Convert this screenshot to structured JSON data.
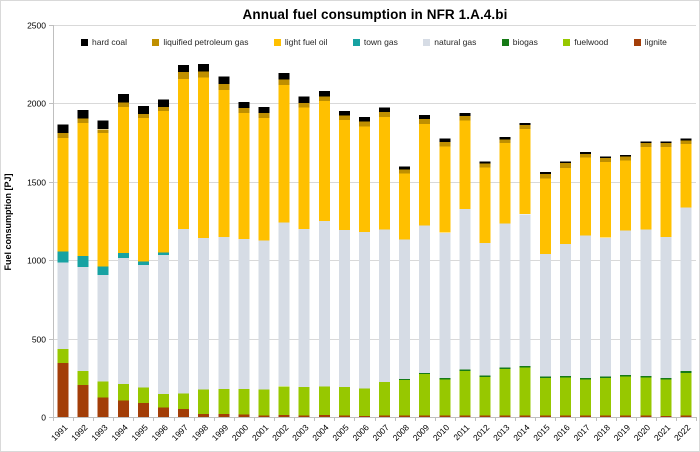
{
  "window": {
    "background": "#FFFFFF",
    "border_color": "#D9D9D9"
  },
  "style": {
    "grid_color": "#D9D9D9",
    "axis_color": "#BFBFBF",
    "tick_label_color": "#000000",
    "title_color": "#000000"
  },
  "chart_data": {
    "type": "bar",
    "stacked": true,
    "title": "Annual fuel consumption in NFR 1.A.4.bi",
    "xlabel": "",
    "ylabel": "Fuel consumption [PJ]",
    "units": "PJ",
    "ylim": [
      0,
      2500
    ],
    "y_ticks": [
      0,
      500,
      1000,
      1500,
      2000,
      2500
    ],
    "grid": "horizontal",
    "legend_position": "top-inside",
    "legend_order": [
      "hard coal",
      "liquified petroleum gas",
      "light fuel oil",
      "town gas",
      "natural gas",
      "biogas",
      "fuelwood",
      "lignite"
    ],
    "categories": [
      "1991",
      "1992",
      "1993",
      "1994",
      "1995",
      "1996",
      "1997",
      "1998",
      "1999",
      "2000",
      "2001",
      "2002",
      "2003",
      "2004",
      "2005",
      "2006",
      "2007",
      "2008",
      "2009",
      "2010",
      "2011",
      "2012",
      "2013",
      "2014",
      "2015",
      "2016",
      "2017",
      "2018",
      "2019",
      "2020",
      "2021",
      "2022"
    ],
    "series": [
      {
        "name": "lignite",
        "color": "#A33E08",
        "values": [
          345,
          205,
          125,
          105,
          90,
          60,
          50,
          20,
          18,
          15,
          10,
          12,
          10,
          12,
          10,
          8,
          10,
          10,
          10,
          10,
          10,
          10,
          10,
          10,
          10,
          10,
          10,
          10,
          10,
          8,
          8,
          8
        ]
      },
      {
        "name": "fuelwood",
        "color": "#97C800",
        "values": [
          90,
          87,
          100,
          105,
          98,
          88,
          100,
          155,
          160,
          165,
          165,
          184,
          180,
          181,
          180,
          174,
          215,
          227,
          263,
          230,
          283,
          245,
          295,
          305,
          239,
          243,
          228,
          239,
          248,
          245,
          230,
          272
        ]
      },
      {
        "name": "biogas",
        "color": "#167A16",
        "values": [
          0,
          0,
          0,
          0,
          0,
          0,
          0,
          0,
          0,
          0,
          0,
          0,
          0,
          0,
          0,
          0,
          0,
          5,
          8,
          8,
          10,
          10,
          10,
          10,
          10,
          10,
          10,
          10,
          10,
          10,
          10,
          12
        ]
      },
      {
        "name": "natural gas",
        "color": "#D6DCE5",
        "values": [
          550,
          665,
          680,
          805,
          783,
          887,
          1050,
          965,
          969,
          956,
          952,
          1043,
          1010,
          1057,
          1002,
          997,
          971,
          890,
          941,
          927,
          1022,
          845,
          918,
          968,
          781,
          841,
          909,
          884,
          922,
          933,
          899,
          1043
        ]
      },
      {
        "name": "town gas",
        "color": "#17A2A2",
        "values": [
          70,
          69,
          55,
          32,
          21,
          15,
          0,
          0,
          0,
          0,
          0,
          0,
          0,
          0,
          0,
          0,
          0,
          0,
          0,
          0,
          0,
          0,
          0,
          0,
          0,
          0,
          0,
          0,
          0,
          0,
          0,
          0
        ]
      },
      {
        "name": "light fuel oil",
        "color": "#FFC000",
        "values": [
          725,
          848,
          850,
          930,
          916,
          901,
          955,
          1025,
          938,
          804,
          781,
          879,
          773,
          764,
          701,
          675,
          718,
          420,
          648,
          550,
          565,
          481,
          513,
          543,
          481,
          485,
          497,
          483,
          447,
          526,
          575,
          405
        ]
      },
      {
        "name": "liquified petroleum gas",
        "color": "#BF8F00",
        "values": [
          30,
          30,
          25,
          28,
          25,
          25,
          45,
          40,
          40,
          30,
          30,
          35,
          30,
          30,
          30,
          30,
          30,
          25,
          30,
          30,
          30,
          25,
          25,
          25,
          30,
          30,
          25,
          25,
          25,
          25,
          25,
          25
        ]
      },
      {
        "name": "hard coal",
        "color": "#000000",
        "values": [
          55,
          55,
          55,
          55,
          50,
          50,
          45,
          45,
          45,
          40,
          40,
          40,
          40,
          35,
          30,
          30,
          30,
          20,
          25,
          20,
          20,
          15,
          15,
          15,
          10,
          10,
          10,
          10,
          10,
          10,
          10,
          10
        ]
      }
    ]
  }
}
